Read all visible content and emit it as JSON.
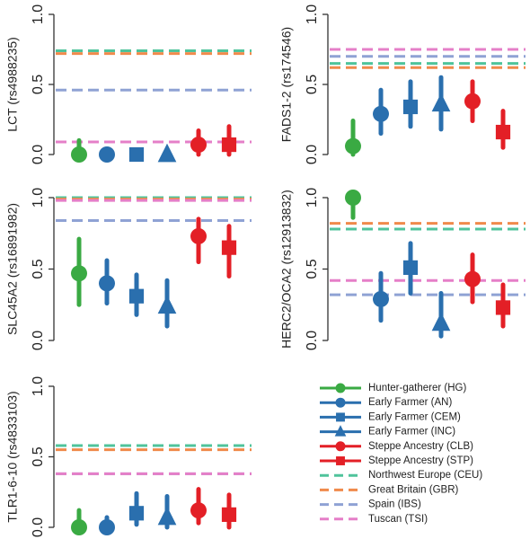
{
  "chart_data": [
    {
      "type": "scatter",
      "ylabel": "LCT (rs4988235)",
      "ylim": [
        0,
        1
      ],
      "yticks": [
        "0.0",
        "0.5",
        "1.0"
      ],
      "points": [
        {
          "series": "Hunter-gatherer (HG)",
          "value": 0.0,
          "low": 0.0,
          "high": 0.1
        },
        {
          "series": "Early Farmer (AN)",
          "value": 0.0,
          "low": 0.0,
          "high": 0.03
        },
        {
          "series": "Early Farmer (CEM)",
          "value": 0.0,
          "low": 0.0,
          "high": 0.02
        },
        {
          "series": "Early Farmer (INC)",
          "value": 0.0,
          "low": 0.0,
          "high": 0.02
        },
        {
          "series": "Steppe Ancestry (CLB)",
          "value": 0.07,
          "low": 0.0,
          "high": 0.17
        },
        {
          "series": "Steppe Ancestry (STP)",
          "value": 0.07,
          "low": 0.0,
          "high": 0.2
        }
      ],
      "reference_lines": [
        {
          "series": "Northwest Europe (CEU)",
          "value": 0.74
        },
        {
          "series": "Great Britain (GBR)",
          "value": 0.72
        },
        {
          "series": "Spain (IBS)",
          "value": 0.46
        },
        {
          "series": "Tuscan (TSI)",
          "value": 0.09
        }
      ]
    },
    {
      "type": "scatter",
      "ylabel": "FADS1-2 (rs174546)",
      "ylim": [
        0,
        1
      ],
      "yticks": [
        "0.0",
        "0.5",
        "1.0"
      ],
      "points": [
        {
          "series": "Hunter-gatherer (HG)",
          "value": 0.06,
          "low": 0.0,
          "high": 0.24
        },
        {
          "series": "Early Farmer (AN)",
          "value": 0.29,
          "low": 0.15,
          "high": 0.46
        },
        {
          "series": "Early Farmer (CEM)",
          "value": 0.34,
          "low": 0.2,
          "high": 0.52
        },
        {
          "series": "Early Farmer (INC)",
          "value": 0.36,
          "low": 0.18,
          "high": 0.55
        },
        {
          "series": "Steppe Ancestry (CLB)",
          "value": 0.38,
          "low": 0.24,
          "high": 0.52
        },
        {
          "series": "Steppe Ancestry (STP)",
          "value": 0.16,
          "low": 0.05,
          "high": 0.31
        }
      ],
      "reference_lines": [
        {
          "series": "Tuscan (TSI)",
          "value": 0.75
        },
        {
          "series": "Spain (IBS)",
          "value": 0.7
        },
        {
          "series": "Northwest Europe (CEU)",
          "value": 0.65
        },
        {
          "series": "Great Britain (GBR)",
          "value": 0.62
        }
      ]
    },
    {
      "type": "scatter",
      "ylabel": "SLC45A2 (rs16891982)",
      "ylim": [
        0,
        1
      ],
      "yticks": [
        "0.0",
        "0.5",
        "1.0"
      ],
      "points": [
        {
          "series": "Hunter-gatherer (HG)",
          "value": 0.47,
          "low": 0.25,
          "high": 0.71
        },
        {
          "series": "Early Farmer (AN)",
          "value": 0.4,
          "low": 0.26,
          "high": 0.56
        },
        {
          "series": "Early Farmer (CEM)",
          "value": 0.31,
          "low": 0.18,
          "high": 0.46
        },
        {
          "series": "Early Farmer (INC)",
          "value": 0.24,
          "low": 0.1,
          "high": 0.42
        },
        {
          "series": "Steppe Ancestry (CLB)",
          "value": 0.73,
          "low": 0.55,
          "high": 0.85
        },
        {
          "series": "Steppe Ancestry (STP)",
          "value": 0.65,
          "low": 0.45,
          "high": 0.8
        }
      ],
      "reference_lines": [
        {
          "series": "Northwest Europe (CEU)",
          "value": 1.0
        },
        {
          "series": "Great Britain (GBR)",
          "value": 0.99
        },
        {
          "series": "Tuscan (TSI)",
          "value": 0.98
        },
        {
          "series": "Spain (IBS)",
          "value": 0.84
        }
      ]
    },
    {
      "type": "scatter",
      "ylabel": "HERC2/OCA2 (rs12913832)",
      "ylim": [
        0,
        1
      ],
      "yticks": [
        "0.0",
        "0.5",
        "1.0"
      ],
      "points": [
        {
          "series": "Hunter-gatherer (HG)",
          "value": 1.0,
          "low": 0.86,
          "high": 1.0
        },
        {
          "series": "Early Farmer (AN)",
          "value": 0.29,
          "low": 0.14,
          "high": 0.47
        },
        {
          "series": "Early Farmer (CEM)",
          "value": 0.51,
          "low": 0.33,
          "high": 0.68
        },
        {
          "series": "Early Farmer (INC)",
          "value": 0.12,
          "low": 0.03,
          "high": 0.33
        },
        {
          "series": "Steppe Ancestry (CLB)",
          "value": 0.43,
          "low": 0.27,
          "high": 0.6
        },
        {
          "series": "Steppe Ancestry (STP)",
          "value": 0.23,
          "low": 0.1,
          "high": 0.39
        }
      ],
      "reference_lines": [
        {
          "series": "Great Britain (GBR)",
          "value": 0.82
        },
        {
          "series": "Northwest Europe (CEU)",
          "value": 0.78
        },
        {
          "series": "Tuscan (TSI)",
          "value": 0.42
        },
        {
          "series": "Spain (IBS)",
          "value": 0.32
        }
      ]
    },
    {
      "type": "scatter",
      "ylabel": "TLR1-6-10 (rs4833103)",
      "ylim": [
        0,
        1
      ],
      "yticks": [
        "0.0",
        "0.5",
        "1.0"
      ],
      "points": [
        {
          "series": "Hunter-gatherer (HG)",
          "value": 0.0,
          "low": 0.0,
          "high": 0.12
        },
        {
          "series": "Early Farmer (AN)",
          "value": 0.0,
          "low": 0.0,
          "high": 0.07
        },
        {
          "series": "Early Farmer (CEM)",
          "value": 0.1,
          "low": 0.02,
          "high": 0.24
        },
        {
          "series": "Early Farmer (INC)",
          "value": 0.07,
          "low": 0.0,
          "high": 0.22
        },
        {
          "series": "Steppe Ancestry (CLB)",
          "value": 0.12,
          "low": 0.03,
          "high": 0.27
        },
        {
          "series": "Steppe Ancestry (STP)",
          "value": 0.09,
          "low": 0.0,
          "high": 0.23
        }
      ],
      "reference_lines": [
        {
          "series": "Northwest Europe (CEU)",
          "value": 0.58
        },
        {
          "series": "Great Britain (GBR)",
          "value": 0.55
        },
        {
          "series": "Spain (IBS)",
          "value": 0.38
        },
        {
          "series": "Tuscan (TSI)",
          "value": 0.38
        }
      ]
    }
  ],
  "legend": [
    {
      "name": "Hunter-gatherer (HG)",
      "marker": "circle",
      "style": "solid",
      "color": "#3aaa43"
    },
    {
      "name": "Early Farmer (AN)",
      "marker": "circle",
      "style": "solid",
      "color": "#2a6fae"
    },
    {
      "name": "Early Farmer (CEM)",
      "marker": "square",
      "style": "solid",
      "color": "#2a6fae"
    },
    {
      "name": "Early Farmer (INC)",
      "marker": "triangle",
      "style": "solid",
      "color": "#2a6fae"
    },
    {
      "name": "Steppe Ancestry (CLB)",
      "marker": "circle",
      "style": "solid",
      "color": "#e31f26"
    },
    {
      "name": "Steppe Ancestry (STP)",
      "marker": "square",
      "style": "solid",
      "color": "#e31f26"
    },
    {
      "name": "Northwest Europe (CEU)",
      "marker": "none",
      "style": "dashed",
      "color": "#4fc39b"
    },
    {
      "name": "Great Britain (GBR)",
      "marker": "none",
      "style": "dashed",
      "color": "#f08a4b"
    },
    {
      "name": "Spain (IBS)",
      "marker": "none",
      "style": "dashed",
      "color": "#8fa2d4"
    },
    {
      "name": "Tuscan (TSI)",
      "marker": "none",
      "style": "dashed",
      "color": "#e57fc8"
    }
  ],
  "legend_position": "bottom-right",
  "grid": false
}
